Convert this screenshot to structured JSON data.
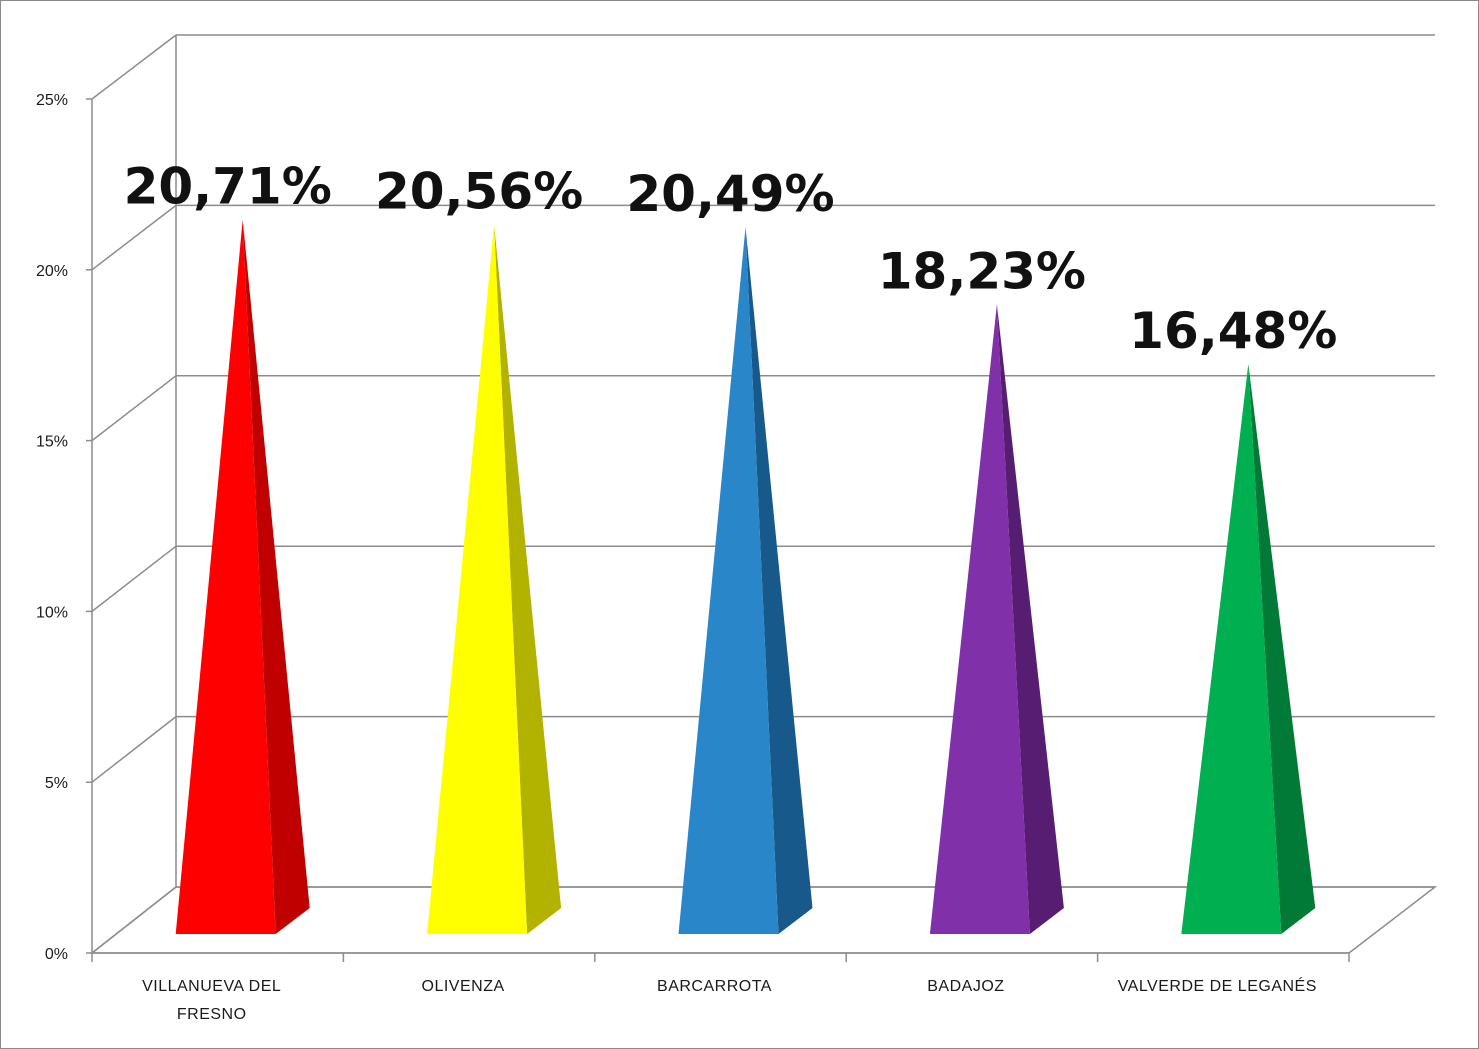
{
  "chart_data": {
    "type": "bar",
    "bar_shape": "pyramid",
    "categories": [
      "VILLANUEVA DEL FRESNO",
      "OLIVENZA",
      "BARCARROTA",
      "BADAJOZ",
      "VALVERDE DE LEGANÉS"
    ],
    "category_lines": [
      [
        "VILLANUEVA DEL",
        "FRESNO"
      ],
      [
        "OLIVENZA"
      ],
      [
        "BARCARROTA"
      ],
      [
        "BADAJOZ"
      ],
      [
        "VALVERDE DE LEGANÉS"
      ]
    ],
    "values": [
      20.71,
      20.56,
      20.49,
      18.23,
      16.48
    ],
    "data_labels": [
      "20,71%",
      "20,56%",
      "20,49%",
      "18,23%",
      "16,48%"
    ],
    "colors": [
      "#ff0000",
      "#ffff00",
      "#2986c8",
      "#8030a8",
      "#00b050"
    ],
    "side_colors": [
      "#c00000",
      "#b2b200",
      "#17598a",
      "#561d73",
      "#007a36"
    ],
    "y_ticks": [
      0,
      5,
      10,
      15,
      20,
      25
    ],
    "y_tick_labels": [
      "0%",
      "5%",
      "10%",
      "15%",
      "20%",
      "25%"
    ],
    "ylim": [
      0,
      25
    ],
    "grid": true,
    "legend": "none"
  }
}
